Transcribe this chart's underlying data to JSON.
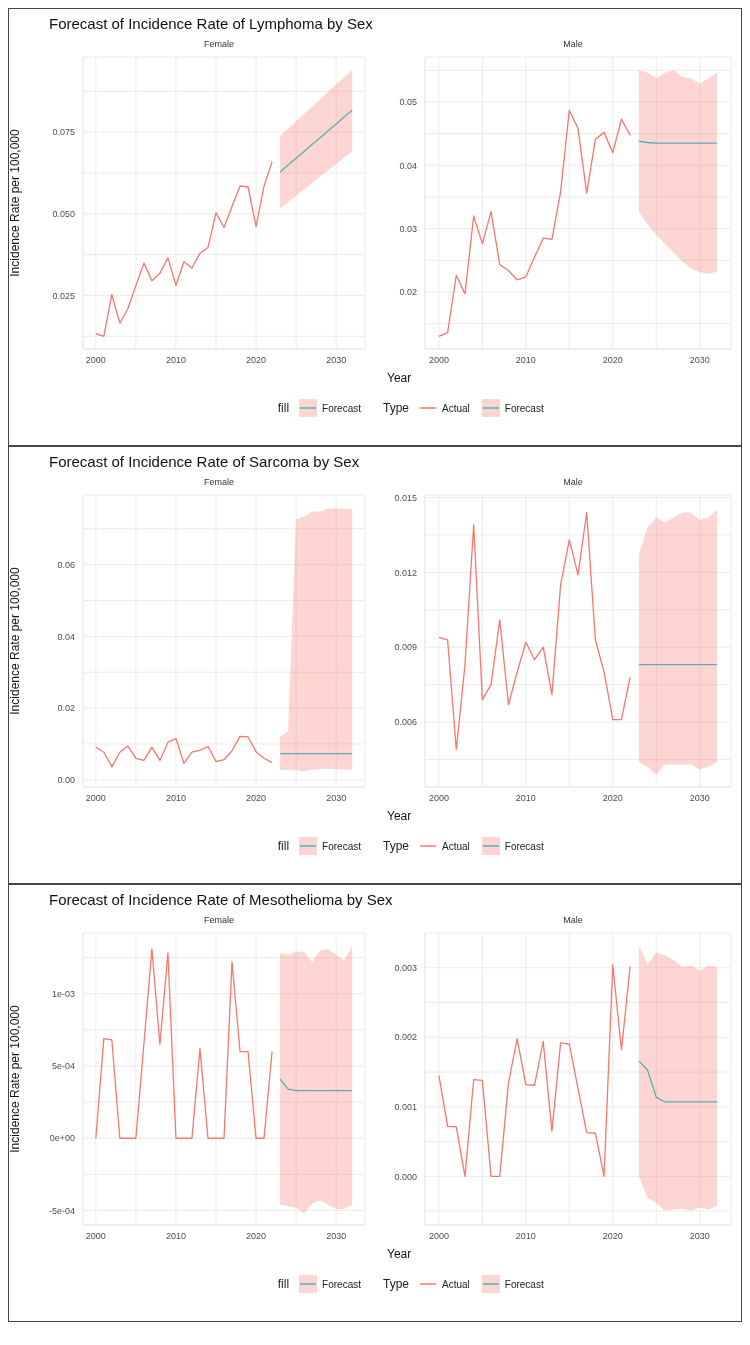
{
  "chart_data": [
    {
      "type": "line",
      "title": "Forecast of Incidence Rate of Lymphoma by Sex",
      "subtitle": "Female",
      "ylabel": "Incidence Rate per 100,000",
      "legend": "bottom right",
      "legend_title": "fill",
      "grid": true,
      "xlim": [
        1998.4,
        2033.6
      ],
      "xticks": [
        2000,
        {
          "value": 2005,
          "label": null
        },
        2010,
        {
          "value": 2015,
          "label": null
        },
        2020,
        {
          "value": 2025,
          "label": null
        },
        2030
      ],
      "ylim": [
        0.0086,
        0.098
      ],
      "yticks": [
        {
          "value": 0.0125,
          "label": null
        },
        {
          "value": 0.025,
          "label": "0.025"
        },
        {
          "value": 0.0375,
          "label": null
        },
        {
          "value": 0.05,
          "label": "0.050"
        },
        {
          "value": 0.0625,
          "label": null
        },
        {
          "value": 0.075,
          "label": "0.075"
        },
        {
          "value": 0.0875,
          "label": null
        }
      ],
      "series": [
        {
          "color": "#f8766d",
          "x": [
            2000,
            2001,
            2002,
            2003,
            2004,
            2005,
            2006,
            2007,
            2008,
            2009,
            2010,
            2011,
            2012,
            2013,
            2014,
            2015,
            2016,
            2017,
            2018,
            2019,
            2020,
            2021,
            2022
          ],
          "values": [
            0.0133,
            0.0125,
            0.0253,
            0.0165,
            0.021,
            0.028,
            0.0349,
            0.0295,
            0.0318,
            0.0365,
            0.0281,
            0.0353,
            0.0334,
            0.0379,
            0.0397,
            0.0503,
            0.0458,
            0.0522,
            0.0585,
            0.0582,
            0.0461,
            0.0585,
            0.0659
          ]
        },
        {
          "name": "Forecast",
          "color": "#5aaeae",
          "x": [
            2023,
            2024,
            2025,
            2026,
            2027,
            2028,
            2029,
            2030,
            2031,
            2032
          ],
          "values": [
            0.0628,
            0.0649,
            0.067,
            0.0691,
            0.0712,
            0.0733,
            0.0754,
            0.0775,
            0.0796,
            0.0817
          ],
          "lower": [
            0.0516,
            0.0535,
            0.0555,
            0.0574,
            0.0594,
            0.0613,
            0.0633,
            0.0652,
            0.0672,
            0.0691
          ],
          "upper": [
            0.0738,
            0.0761,
            0.0783,
            0.0806,
            0.0828,
            0.0851,
            0.0874,
            0.0896,
            0.0919,
            0.0941
          ]
        }
      ]
    },
    {
      "type": "line",
      "subtitle": "Male",
      "xlabel": "Year",
      "legend": "bottom left",
      "legend_title": "Type",
      "grid": true,
      "xlim": [
        1998.4,
        2033.6
      ],
      "xticks": [
        2000,
        {
          "value": 2005,
          "label": null
        },
        2010,
        {
          "value": 2015,
          "label": null
        },
        2020,
        {
          "value": 2025,
          "label": null
        },
        2030
      ],
      "ylim": [
        0.011,
        0.0571
      ],
      "yticks": [
        {
          "value": 0.015,
          "label": null
        },
        0.02,
        {
          "value": 0.025,
          "label": null
        },
        0.03,
        {
          "value": 0.035,
          "label": null
        },
        0.04,
        {
          "value": 0.045,
          "label": null
        },
        0.05,
        {
          "value": 0.055,
          "label": null
        }
      ],
      "series": [
        {
          "name": "Actual",
          "color": "#f8766d",
          "x": [
            2000,
            2001,
            2002,
            2003,
            2004,
            2005,
            2006,
            2007,
            2008,
            2009,
            2010,
            2011,
            2012,
            2013,
            2014,
            2015,
            2016,
            2017,
            2018,
            2019,
            2020,
            2021,
            2022
          ],
          "values": [
            0.013,
            0.0136,
            0.0226,
            0.0197,
            0.032,
            0.0276,
            0.0327,
            0.0243,
            0.0234,
            0.0219,
            0.0224,
            0.0255,
            0.0285,
            0.0283,
            0.0358,
            0.0487,
            0.0458,
            0.0356,
            0.0441,
            0.0452,
            0.042,
            0.0473,
            0.0447
          ]
        },
        {
          "name": "Forecast",
          "color": "#5aaeae",
          "x": [
            2023,
            2024,
            2025,
            2026,
            2027,
            2028,
            2029,
            2030,
            2031,
            2032
          ],
          "values": [
            0.0438,
            0.0436,
            0.0435,
            0.0435,
            0.0435,
            0.0435,
            0.0435,
            0.0435,
            0.0435,
            0.0435
          ],
          "lower": [
            0.0326,
            0.0307,
            0.029,
            0.0276,
            0.0262,
            0.0248,
            0.0237,
            0.0231,
            0.0229,
            0.0232
          ],
          "upper": [
            0.055,
            0.0546,
            0.0538,
            0.0546,
            0.055,
            0.054,
            0.0537,
            0.0529,
            0.0537,
            0.0546
          ]
        }
      ]
    },
    {
      "type": "line",
      "title": "Forecast of Incidence Rate of Sarcoma by Sex",
      "subtitle": "Female",
      "ylabel": "Incidence Rate per 100,000",
      "legend": "bottom right",
      "legend_title": "fill",
      "grid": true,
      "xlim": [
        1998.4,
        2033.6
      ],
      "xticks": [
        2000,
        {
          "value": 2005,
          "label": null
        },
        2010,
        {
          "value": 2015,
          "label": null
        },
        2020,
        {
          "value": 2025,
          "label": null
        },
        2030
      ],
      "ylim": [
        -0.002,
        0.0794
      ],
      "yticks": [
        {
          "value": 0,
          "label": "0.00"
        },
        {
          "value": 0.01,
          "label": null
        },
        {
          "value": 0.02,
          "label": "0.02"
        },
        {
          "value": 0.03,
          "label": null
        },
        {
          "value": 0.04,
          "label": "0.04"
        },
        {
          "value": 0.05,
          "label": null
        },
        {
          "value": 0.06,
          "label": "0.06"
        },
        {
          "value": 0.07,
          "label": null
        }
      ],
      "series": [
        {
          "color": "#f8766d",
          "x": [
            2000,
            2001,
            2002,
            2003,
            2004,
            2005,
            2006,
            2007,
            2008,
            2009,
            2010,
            2011,
            2012,
            2013,
            2014,
            2015,
            2016,
            2017,
            2018,
            2019,
            2020,
            2021,
            2022
          ],
          "values": [
            0.0091,
            0.0077,
            0.0036,
            0.0077,
            0.0094,
            0.006,
            0.0054,
            0.0091,
            0.0054,
            0.0105,
            0.0115,
            0.0046,
            0.0077,
            0.0082,
            0.0093,
            0.0051,
            0.0056,
            0.0081,
            0.0121,
            0.012,
            0.0078,
            0.006,
            0.0048
          ]
        },
        {
          "name": "Forecast",
          "color": "#5aaeae",
          "x": [
            2023,
            2024,
            2025,
            2026,
            2027,
            2028,
            2029,
            2030,
            2031,
            2032
          ],
          "values": [
            0.0073,
            0.0073,
            0.0073,
            0.0073,
            0.0073,
            0.0073,
            0.0073,
            0.0073,
            0.0073,
            0.0073
          ],
          "lower": [
            0.0028,
            0.0028,
            0.0027,
            0.0024,
            0.0028,
            0.003,
            0.003,
            0.003,
            0.0029,
            0.0028
          ],
          "upper": [
            0.0121,
            0.0135,
            0.0726,
            0.0734,
            0.0748,
            0.0748,
            0.0756,
            0.0757,
            0.0755,
            0.0755
          ]
        }
      ]
    },
    {
      "type": "line",
      "subtitle": "Male",
      "xlabel": "Year",
      "legend": "bottom left",
      "legend_title": "Type",
      "grid": true,
      "xlim": [
        1998.4,
        2033.6
      ],
      "xticks": [
        2000,
        {
          "value": 2005,
          "label": null
        },
        2010,
        {
          "value": 2015,
          "label": null
        },
        2020,
        {
          "value": 2025,
          "label": null
        },
        2030
      ],
      "ylim": [
        0.0034,
        0.0151
      ],
      "yticks": [
        {
          "value": 0.0045,
          "label": null
        },
        0.006,
        {
          "value": 0.0075,
          "label": null
        },
        0.009,
        {
          "value": 0.0105,
          "label": null
        },
        0.012,
        {
          "value": 0.0135,
          "label": null
        },
        0.015
      ],
      "series": [
        {
          "name": "Actual",
          "color": "#f8766d",
          "x": [
            2000,
            2001,
            2002,
            2003,
            2004,
            2005,
            2006,
            2007,
            2008,
            2009,
            2010,
            2011,
            2012,
            2013,
            2014,
            2015,
            2016,
            2017,
            2018,
            2019,
            2020,
            2021,
            2022
          ],
          "values": [
            0.0094,
            0.0093,
            0.0049,
            0.0083,
            0.0139,
            0.0069,
            0.0075,
            0.0101,
            0.0067,
            0.008,
            0.0092,
            0.0085,
            0.009,
            0.0071,
            0.0115,
            0.0133,
            0.0119,
            0.0144,
            0.0093,
            0.008,
            0.0061,
            0.0061,
            0.0078
          ]
        },
        {
          "name": "Forecast",
          "color": "#5aaeae",
          "x": [
            2023,
            2024,
            2025,
            2026,
            2027,
            2028,
            2029,
            2030,
            2031,
            2032
          ],
          "values": [
            0.0083,
            0.0083,
            0.0083,
            0.0083,
            0.0083,
            0.0083,
            0.0083,
            0.0083,
            0.0083,
            0.0083
          ],
          "lower": [
            0.0044,
            0.0042,
            0.0039,
            0.0043,
            0.0043,
            0.0043,
            0.0043,
            0.0041,
            0.0042,
            0.0044
          ],
          "upper": [
            0.0127,
            0.0138,
            0.0142,
            0.014,
            0.0142,
            0.0144,
            0.0144,
            0.0141,
            0.0142,
            0.0145
          ]
        }
      ]
    },
    {
      "type": "line",
      "title": "Forecast of Incidence Rate of Mesothelioma by Sex",
      "subtitle": "Female",
      "ylabel": "Incidence Rate per 100,000",
      "legend": "bottom right",
      "legend_title": "fill",
      "grid": true,
      "xlim": [
        1998.4,
        2033.6
      ],
      "xticks": [
        2000,
        {
          "value": 2005,
          "label": null
        },
        2010,
        {
          "value": 2015,
          "label": null
        },
        2020,
        {
          "value": 2025,
          "label": null
        },
        2030
      ],
      "ylim": [
        -0.0006,
        0.00142
      ],
      "yticks": [
        {
          "value": -0.0005,
          "label": "-5e-04"
        },
        {
          "value": -0.00025,
          "label": null
        },
        {
          "value": 0,
          "label": "0e+00"
        },
        {
          "value": 0.00025,
          "label": null
        },
        {
          "value": 0.0005,
          "label": "5e-04"
        },
        {
          "value": 0.00075,
          "label": null
        },
        {
          "value": 0.001,
          "label": "1e-03"
        },
        {
          "value": 0.00125,
          "label": null
        }
      ],
      "series": [
        {
          "color": "#f8766d",
          "x": [
            2000,
            2001,
            2002,
            2003,
            2004,
            2005,
            2006,
            2007,
            2008,
            2009,
            2010,
            2011,
            2012,
            2013,
            2014,
            2015,
            2016,
            2017,
            2018,
            2019,
            2020,
            2021,
            2022
          ],
          "values": [
            0,
            0.00069,
            0.00068,
            0,
            0,
            0,
            0.00065,
            0.00131,
            0.00065,
            0.00128,
            0,
            0,
            0,
            0.00062,
            0,
            0,
            0,
            0.00122,
            0.0006,
            0.0006,
            0,
            0,
            0.0006
          ]
        },
        {
          "name": "Forecast",
          "color": "#5aaeae",
          "x": [
            2023,
            2024,
            2025,
            2026,
            2027,
            2028,
            2029,
            2030,
            2031,
            2032
          ],
          "values": [
            0.00041,
            0.00034,
            0.00033,
            0.00033,
            0.00033,
            0.00033,
            0.00033,
            0.00033,
            0.00033,
            0.00033
          ],
          "lower": [
            -0.00046,
            -0.00047,
            -0.00048,
            -0.00052,
            -0.00045,
            -0.00043,
            -0.00046,
            -0.00049,
            -0.00049,
            -0.00046
          ],
          "upper": [
            0.00128,
            0.00127,
            0.00129,
            0.00129,
            0.00122,
            0.0013,
            0.00131,
            0.00127,
            0.00123,
            0.00133
          ]
        }
      ]
    },
    {
      "type": "line",
      "subtitle": "Male",
      "xlabel": "Year",
      "legend": "bottom left",
      "legend_title": "Type",
      "grid": true,
      "xlim": [
        1998.4,
        2033.6
      ],
      "xticks": [
        2000,
        {
          "value": 2005,
          "label": null
        },
        2010,
        {
          "value": 2015,
          "label": null
        },
        2020,
        {
          "value": 2025,
          "label": null
        },
        2030
      ],
      "ylim": [
        -0.0007,
        0.0035
      ],
      "yticks": [
        {
          "value": -0.0005,
          "label": null
        },
        {
          "value": 0,
          "label": "0.000"
        },
        {
          "value": 0.0005,
          "label": null
        },
        {
          "value": 0.001,
          "label": "0.001"
        },
        {
          "value": 0.0015,
          "label": null
        },
        {
          "value": 0.002,
          "label": "0.002"
        },
        {
          "value": 0.0025,
          "label": null
        },
        {
          "value": 0.003,
          "label": "0.003"
        }
      ],
      "series": [
        {
          "name": "Actual",
          "color": "#f8766d",
          "x": [
            2000,
            2001,
            2002,
            2003,
            2004,
            2005,
            2006,
            2007,
            2008,
            2009,
            2010,
            2011,
            2012,
            2013,
            2014,
            2015,
            2016,
            2017,
            2018,
            2019,
            2020,
            2021,
            2022
          ],
          "values": [
            0.00145,
            0.00072,
            0.00071,
            0,
            0.00139,
            0.00138,
            0,
            0,
            0.00134,
            0.00198,
            0.00132,
            0.00131,
            0.00194,
            0.00065,
            0.00192,
            0.0019,
            0.00126,
            0.00063,
            0.00062,
            0,
            0.00304,
            0.00182,
            0.00302
          ]
        },
        {
          "name": "Forecast",
          "color": "#5aaeae",
          "x": [
            2023,
            2024,
            2025,
            2026,
            2027,
            2028,
            2029,
            2030,
            2031,
            2032
          ],
          "values": [
            0.00166,
            0.00153,
            0.00114,
            0.00107,
            0.00107,
            0.00107,
            0.00107,
            0.00107,
            0.00107,
            0.00107
          ],
          "lower": [
            0,
            -0.00031,
            -0.00038,
            -0.0005,
            -0.00048,
            -0.00047,
            -0.00049,
            -0.00045,
            -0.00048,
            -0.00042
          ],
          "upper": [
            0.00332,
            0.00305,
            0.00322,
            0.00318,
            0.00311,
            0.00301,
            0.00303,
            0.00296,
            0.00303,
            0.00301
          ]
        }
      ]
    }
  ]
}
